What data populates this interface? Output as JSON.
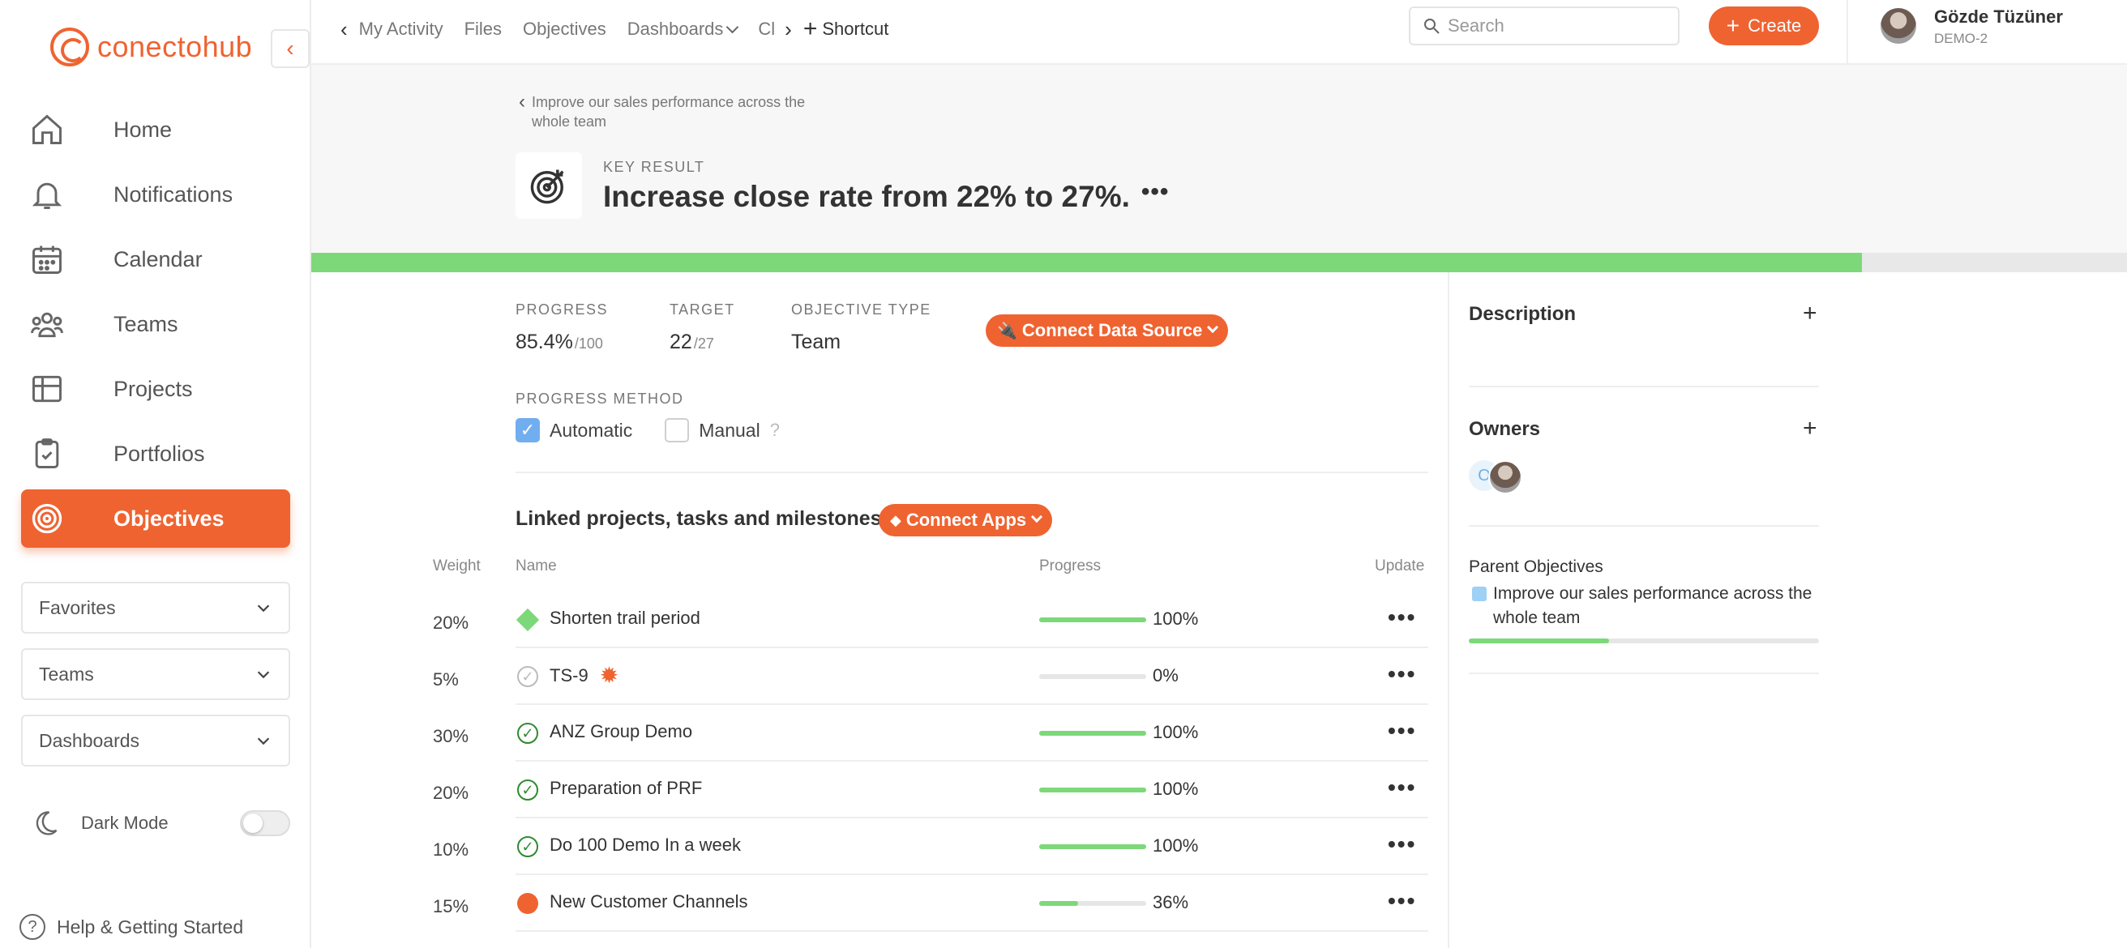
{
  "brand": {
    "name": "conectohub",
    "accent": "#ef6331"
  },
  "sidebar": {
    "items": [
      {
        "label": "Home",
        "icon": "home-icon"
      },
      {
        "label": "Notifications",
        "icon": "bell-icon"
      },
      {
        "label": "Calendar",
        "icon": "calendar-icon"
      },
      {
        "label": "Teams",
        "icon": "teams-icon"
      },
      {
        "label": "Projects",
        "icon": "grid-icon"
      },
      {
        "label": "Portfolios",
        "icon": "clipboard-icon"
      },
      {
        "label": "Objectives",
        "icon": "target-icon",
        "active": true
      }
    ],
    "dropdowns": [
      "Favorites",
      "Teams",
      "Dashboards"
    ],
    "dark_mode_label": "Dark Mode",
    "dark_mode_on": false,
    "help_label": "Help & Getting Started"
  },
  "topbar": {
    "breadcrumbs": [
      "My Activity",
      "Files",
      "Objectives",
      "Dashboards",
      "Cl"
    ],
    "shortcut_label": "Shortcut",
    "search_placeholder": "Search",
    "create_label": "Create",
    "user_name": "Gözde Tüzüner",
    "user_org": "DEMO-2"
  },
  "header": {
    "parent_link": "Improve our sales performance across the whole team",
    "kind_label": "KEY RESULT",
    "title": "Increase close rate from 22% to 27%.",
    "more": "•••",
    "progress_fraction": 0.854
  },
  "stats": {
    "progress_label": "PROGRESS",
    "progress_value": "85.4%",
    "progress_max": "/100",
    "target_label": "TARGET",
    "target_value": "22",
    "target_max": "/27",
    "objective_type_label": "OBJECTIVE TYPE",
    "objective_type_value": "Team",
    "connect_data_source": "Connect Data Source"
  },
  "progress_method": {
    "label": "PROGRESS METHOD",
    "automatic": "Automatic",
    "manual": "Manual",
    "help": "?"
  },
  "linked": {
    "title": "Linked projects, tasks and milestones",
    "connect_apps": "Connect Apps",
    "columns": {
      "weight": "Weight",
      "name": "Name",
      "progress": "Progress",
      "update": "Update"
    },
    "rows": [
      {
        "weight": "20%",
        "name": "Shorten trail period",
        "status": "milestone",
        "progress": 100,
        "progress_text": "100%"
      },
      {
        "weight": "5%",
        "name": "TS-9",
        "status": "todo",
        "badge": "gear",
        "progress": 0,
        "progress_text": "0%"
      },
      {
        "weight": "30%",
        "name": "ANZ Group Demo",
        "status": "done",
        "progress": 100,
        "progress_text": "100%"
      },
      {
        "weight": "20%",
        "name": "Preparation of PRF",
        "status": "done",
        "progress": 100,
        "progress_text": "100%"
      },
      {
        "weight": "10%",
        "name": "Do 100 Demo In a week",
        "status": "done",
        "progress": 100,
        "progress_text": "100%"
      },
      {
        "weight": "15%",
        "name": "New Customer Channels",
        "status": "project",
        "progress": 36,
        "progress_text": "36%"
      }
    ],
    "row_more": "•••"
  },
  "right_panel": {
    "description_label": "Description",
    "owners_label": "Owners",
    "owner_initial": "O",
    "parent_objectives_label": "Parent Objectives",
    "parent_objective": "Improve our sales performance across the whole team",
    "parent_objective_progress": 0.4
  }
}
